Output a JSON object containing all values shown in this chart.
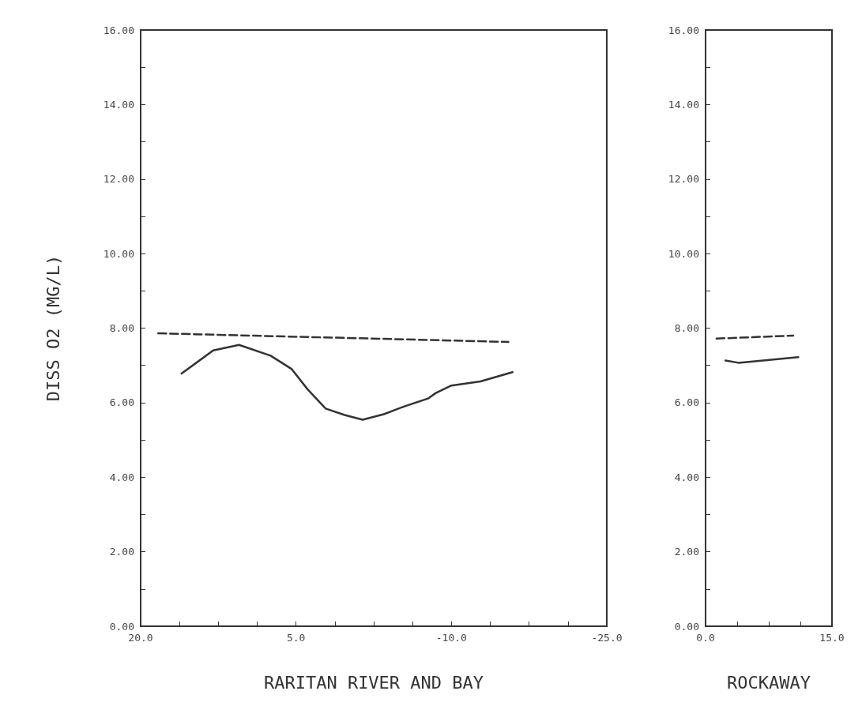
{
  "chart_data": [
    {
      "type": "line",
      "xlabel": "RARITAN RIVER AND BAY",
      "ylabel": "DISS O2 (MG/L)",
      "xlim": [
        20,
        -25
      ],
      "ylim": [
        0,
        16
      ],
      "xticks": [
        {
          "value": 20,
          "label": "20.0"
        },
        {
          "value": 16.25,
          "label": null
        },
        {
          "value": 12.5,
          "label": null
        },
        {
          "value": 8.75,
          "label": null
        },
        {
          "value": 5,
          "label": "5.0"
        },
        {
          "value": 1.25,
          "label": null
        },
        {
          "value": -2.5,
          "label": null
        },
        {
          "value": -6.25,
          "label": null
        },
        {
          "value": -10,
          "label": "-10.0"
        },
        {
          "value": -13.75,
          "label": null
        },
        {
          "value": -17.5,
          "label": null
        },
        {
          "value": -21.25,
          "label": null
        },
        {
          "value": -25,
          "label": "-25.0"
        }
      ],
      "yticks": [
        {
          "value": 0,
          "label": "0.00"
        },
        {
          "value": 1,
          "label": null
        },
        {
          "value": 2,
          "label": "2.00"
        },
        {
          "value": 3,
          "label": null
        },
        {
          "value": 4,
          "label": "4.00"
        },
        {
          "value": 5,
          "label": null
        },
        {
          "value": 6,
          "label": "6.00"
        },
        {
          "value": 7,
          "label": null
        },
        {
          "value": 8,
          "label": "8.00"
        },
        {
          "value": 9,
          "label": null
        },
        {
          "value": 10,
          "label": "10.00"
        },
        {
          "value": 11,
          "label": null
        },
        {
          "value": 12,
          "label": "12.00"
        },
        {
          "value": 13,
          "label": null
        },
        {
          "value": 14,
          "label": "14.00"
        },
        {
          "value": 15,
          "label": null
        },
        {
          "value": 16,
          "label": "16.00"
        }
      ],
      "grid": false,
      "marker": "none",
      "series": [
        {
          "color": "#333333",
          "line_style": "solid",
          "x": [
            16.05,
            13.0,
            10.5,
            7.46,
            5.41,
            3.89,
            2.14,
            0.31,
            -1.43,
            -3.48,
            -5.46,
            -7.74,
            -8.5,
            -10.0,
            -12.8,
            -15.9
          ],
          "values": [
            6.78,
            7.4,
            7.55,
            7.26,
            6.9,
            6.36,
            5.84,
            5.67,
            5.54,
            5.69,
            5.9,
            6.11,
            6.26,
            6.46,
            6.57,
            6.82
          ]
        },
        {
          "color": "#333333",
          "line_style": "dashed",
          "x": [
            18.3,
            -15.5
          ],
          "values": [
            7.86,
            7.63
          ]
        }
      ]
    },
    {
      "type": "line",
      "xlabel": "ROCKAWAY",
      "xlim": [
        0,
        15
      ],
      "ylim": [
        0,
        16
      ],
      "xticks": [
        {
          "value": 0,
          "label": "0.0"
        },
        {
          "value": 3.75,
          "label": null
        },
        {
          "value": 7.5,
          "label": null
        },
        {
          "value": 11.25,
          "label": null
        },
        {
          "value": 15,
          "label": "15.0"
        }
      ],
      "yticks": [
        {
          "value": 0,
          "label": "0.00"
        },
        {
          "value": 1,
          "label": null
        },
        {
          "value": 2,
          "label": "2.00"
        },
        {
          "value": 3,
          "label": null
        },
        {
          "value": 4,
          "label": "4.00"
        },
        {
          "value": 5,
          "label": null
        },
        {
          "value": 6,
          "label": "6.00"
        },
        {
          "value": 7,
          "label": null
        },
        {
          "value": 8,
          "label": "8.00"
        },
        {
          "value": 9,
          "label": null
        },
        {
          "value": 10,
          "label": "10.00"
        },
        {
          "value": 11,
          "label": null
        },
        {
          "value": 12,
          "label": "12.00"
        },
        {
          "value": 13,
          "label": null
        },
        {
          "value": 14,
          "label": "14.00"
        },
        {
          "value": 15,
          "label": null
        },
        {
          "value": 16,
          "label": "16.00"
        }
      ],
      "grid": false,
      "marker": "none",
      "series": [
        {
          "color": "#333333",
          "line_style": "solid",
          "x": [
            2.36,
            3.9,
            11.0
          ],
          "values": [
            7.13,
            7.07,
            7.22
          ]
        },
        {
          "color": "#333333",
          "line_style": "dashed",
          "x": [
            1.3,
            10.4
          ],
          "values": [
            7.72,
            7.8
          ]
        }
      ]
    }
  ]
}
